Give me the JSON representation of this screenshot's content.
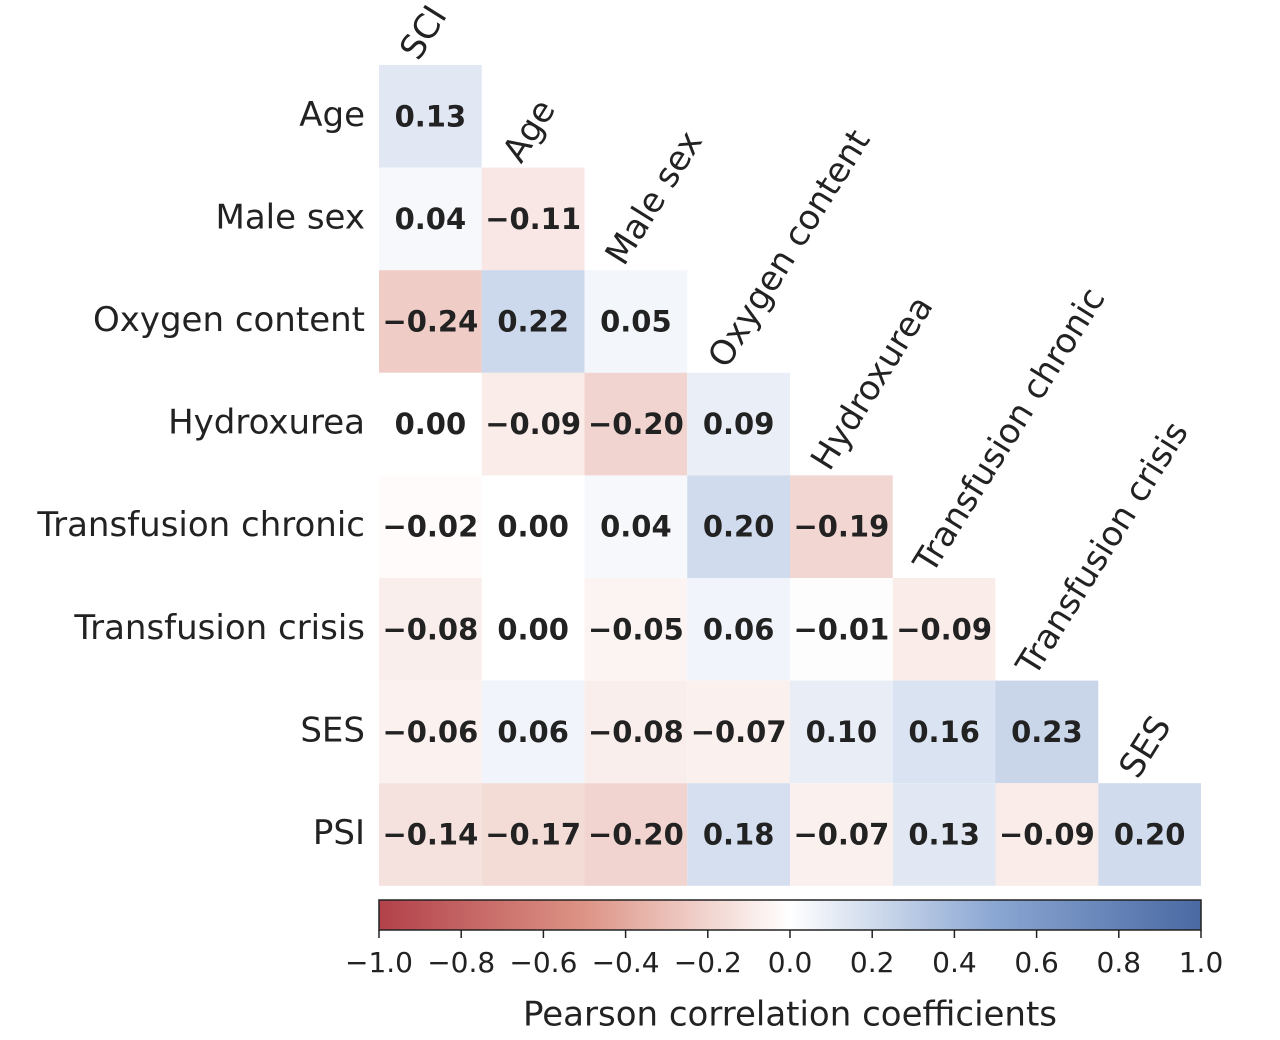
{
  "chart_data": {
    "type": "heatmap",
    "rows": [
      "Age",
      "Male sex",
      "Oxygen content",
      "Hydroxurea",
      "Transfusion chronic",
      "Transfusion crisis",
      "SES",
      "PSI"
    ],
    "columns": [
      "SCI",
      "Age",
      "Male sex",
      "Oxygen content",
      "Hydroxurea",
      "Transfusion chronic",
      "Transfusion crisis",
      "SES"
    ],
    "values": [
      [
        0.13,
        null,
        null,
        null,
        null,
        null,
        null,
        null
      ],
      [
        0.04,
        -0.11,
        null,
        null,
        null,
        null,
        null,
        null
      ],
      [
        -0.24,
        0.22,
        0.05,
        null,
        null,
        null,
        null,
        null
      ],
      [
        0.0,
        -0.09,
        -0.2,
        0.09,
        null,
        null,
        null,
        null
      ],
      [
        -0.02,
        0.0,
        0.04,
        0.2,
        -0.19,
        null,
        null,
        null
      ],
      [
        -0.08,
        0.0,
        -0.05,
        0.06,
        -0.01,
        -0.09,
        null,
        null
      ],
      [
        -0.06,
        0.06,
        -0.08,
        -0.07,
        0.1,
        0.16,
        0.23,
        null
      ],
      [
        -0.14,
        -0.17,
        -0.2,
        0.18,
        -0.07,
        0.13,
        -0.09,
        0.2
      ]
    ],
    "value_labels": [
      [
        "0.13",
        null,
        null,
        null,
        null,
        null,
        null,
        null
      ],
      [
        "0.04",
        "−0.11",
        null,
        null,
        null,
        null,
        null,
        null
      ],
      [
        "−0.24",
        "0.22",
        "0.05",
        null,
        null,
        null,
        null,
        null
      ],
      [
        "0.00",
        "−0.09",
        "−0.20",
        "0.09",
        null,
        null,
        null,
        null
      ],
      [
        "−0.02",
        "0.00",
        "0.04",
        "0.20",
        "−0.19",
        null,
        null,
        null
      ],
      [
        "−0.08",
        "0.00",
        "−0.05",
        "0.06",
        "−0.01",
        "−0.09",
        null,
        null
      ],
      [
        "−0.06",
        "0.06",
        "−0.08",
        "−0.07",
        "0.10",
        "0.16",
        "0.23",
        null
      ],
      [
        "−0.14",
        "−0.17",
        "−0.20",
        "0.18",
        "−0.07",
        "0.13",
        "−0.09",
        "0.20"
      ]
    ],
    "colorscale": [
      "#b2414a",
      "#dd9486",
      "#ffffff",
      "#8aa6d2",
      "#4a69a3"
    ],
    "colorbar_title": "Pearson correlation coefficients",
    "xlim": [
      -1,
      1
    ],
    "xticks": [
      {
        "value": -1,
        "label": "−1.0"
      },
      {
        "value": -0.8,
        "label": "−0.8"
      },
      {
        "value": -0.6,
        "label": "−0.6"
      },
      {
        "value": -0.4,
        "label": "−0.4"
      },
      {
        "value": -0.2,
        "label": "−0.2"
      },
      {
        "value": 0,
        "label": "0.0"
      },
      {
        "value": 0.2,
        "label": "0.2"
      },
      {
        "value": 0.4,
        "label": "0.4"
      },
      {
        "value": 0.6,
        "label": "0.6"
      },
      {
        "value": 0.8,
        "label": "0.8"
      },
      {
        "value": 1,
        "label": "1.0"
      }
    ]
  }
}
